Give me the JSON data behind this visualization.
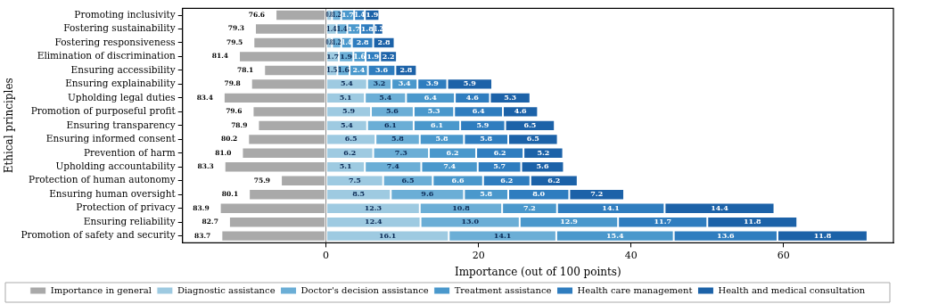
{
  "chart_data": {
    "type": "bar",
    "orientation": "horizontal",
    "stacked": true,
    "xlabel": "Importance (out of 100 points)",
    "ylabel": "Ethical principles",
    "categories": [
      "Promoting inclusivity",
      "Fostering sustainability",
      "Fostering responsiveness",
      "Elimination of discrimination",
      "Ensuring accessibility",
      "Ensuring explainability",
      "Upholding legal duties",
      "Promotion of purposeful profit",
      "Ensuring transparency",
      "Ensuring informed consent",
      "Prevention of harm",
      "Upholding accountability",
      "Protection of human autonomy",
      "Ensuring human oversight",
      "Protection of privacy",
      "Ensuring reliability",
      "Promotion of safety and security"
    ],
    "series": [
      {
        "name": "Importance in general",
        "color": "#a9a9a9",
        "values": [
          -6.6,
          -9.3,
          -9.5,
          -11.4,
          -8.1,
          -9.8,
          -13.4,
          -9.6,
          -8.9,
          -10.2,
          -11.0,
          -13.3,
          -5.9,
          -10.1,
          -13.9,
          -12.7,
          -13.7
        ]
      },
      {
        "name": "Diagnostic assistance",
        "color": "#9ecae1",
        "values": [
          0.8,
          1.4,
          0.8,
          1.7,
          1.5,
          5.4,
          5.1,
          5.9,
          5.4,
          6.5,
          6.2,
          5.1,
          7.5,
          8.5,
          12.3,
          12.4,
          16.1
        ],
        "value_labels": [
          "0.8",
          "1.4",
          "0.8",
          "1.7",
          "1.5",
          "5.4",
          "5.1",
          "5.9",
          "5.4",
          "6.5",
          "6.2",
          "5.1",
          "7.5",
          "8.5",
          "12.3",
          "12.4",
          "16.1"
        ]
      },
      {
        "name": "Doctor's decision assistance",
        "color": "#6baed6",
        "values": [
          1.2,
          1.4,
          1.2,
          1.9,
          1.6,
          3.2,
          5.4,
          5.6,
          6.1,
          5.8,
          7.3,
          7.4,
          6.5,
          9.6,
          10.8,
          13.0,
          14.1
        ],
        "value_labels": [
          "1.2",
          "1.4",
          "1.2",
          "1.9",
          "1.6",
          "3.2",
          "5.4",
          "5.6",
          "6.1",
          "5.8",
          "7.3",
          "7.4",
          "6.5",
          "9.6",
          "10.8",
          "13.0",
          "14.1"
        ]
      },
      {
        "name": "Treatment assistance",
        "color": "#4a98cc",
        "values": [
          1.7,
          1.7,
          1.4,
          1.6,
          2.4,
          3.4,
          6.4,
          5.3,
          6.1,
          5.8,
          6.2,
          7.4,
          6.6,
          5.8,
          7.2,
          12.9,
          15.4
        ],
        "value_labels": [
          "1.7",
          "1.7",
          "1.4",
          "1.6",
          "2.4",
          "3.4",
          "6.4",
          "5.3",
          "6.1",
          "5.8",
          "6.2",
          "7.4",
          "6.6",
          "5.8",
          "7.2",
          "12.9",
          "15.4"
        ]
      },
      {
        "name": "Health care management",
        "color": "#2f7dbf",
        "values": [
          1.4,
          1.8,
          2.8,
          1.9,
          3.6,
          3.9,
          4.6,
          6.4,
          5.9,
          5.8,
          6.2,
          5.7,
          6.2,
          8.0,
          14.1,
          11.7,
          13.6
        ],
        "value_labels": [
          "1.4",
          "1.8",
          "2.8",
          "1.9",
          "3.6",
          "3.9",
          "4.6",
          "6.4",
          "5.9",
          "5.8",
          "6.2",
          "5.7",
          "6.2",
          "8.0",
          "14.1",
          "11.7",
          "13.6"
        ]
      },
      {
        "name": "Health and medical consultation",
        "color": "#1c62a8",
        "values": [
          1.9,
          1.2,
          2.8,
          2.2,
          2.8,
          5.9,
          5.3,
          4.6,
          6.5,
          6.5,
          5.2,
          5.6,
          6.2,
          7.2,
          14.4,
          11.8,
          11.8
        ],
        "value_labels": [
          "1.9",
          "1.2",
          "2.8",
          "2.2",
          "2.8",
          "5.9",
          "5.3",
          "4.6",
          "6.5",
          "6.5",
          "5.2",
          "5.6",
          "6.2",
          "7.2",
          "14.4",
          "11.8",
          "11.8"
        ]
      }
    ],
    "xlim": [
      -18.8,
      74.4
    ],
    "xticks": [
      0,
      20,
      40,
      60
    ],
    "grid": false,
    "legend": "bottom",
    "ref_lines": [
      {
        "axis": "x",
        "value": 0,
        "color": "#888888"
      }
    ],
    "annotations": [
      {
        "text": "76.6",
        "x": -6.6,
        "y": "Promoting inclusivity"
      },
      {
        "text": "79.3",
        "x": -9.3,
        "y": "Fostering sustainability"
      },
      {
        "text": "79.5",
        "x": -9.5,
        "y": "Fostering responsiveness"
      },
      {
        "text": "81.4",
        "x": -11.4,
        "y": "Elimination of discrimination"
      },
      {
        "text": "78.1",
        "x": -8.1,
        "y": "Ensuring accessibility"
      },
      {
        "text": "79.8",
        "x": -9.8,
        "y": "Ensuring explainability"
      },
      {
        "text": "83.4",
        "x": -13.4,
        "y": "Upholding legal duties"
      },
      {
        "text": "79.6",
        "x": -9.6,
        "y": "Promotion of purposeful profit"
      },
      {
        "text": "78.9",
        "x": -8.9,
        "y": "Ensuring transparency"
      },
      {
        "text": "80.2",
        "x": -10.2,
        "y": "Ensuring informed consent"
      },
      {
        "text": "81.0",
        "x": -11.0,
        "y": "Prevention of harm"
      },
      {
        "text": "83.3",
        "x": -13.3,
        "y": "Upholding accountability"
      },
      {
        "text": "75.9",
        "x": -5.9,
        "y": "Protection of human autonomy"
      },
      {
        "text": "80.1",
        "x": -10.1,
        "y": "Ensuring human oversight"
      },
      {
        "text": "83.9",
        "x": -13.9,
        "y": "Protection of privacy"
      },
      {
        "text": "82.7",
        "x": -12.7,
        "y": "Ensuring reliability"
      },
      {
        "text": "83.7",
        "x": -13.7,
        "y": "Promotion of safety and security"
      }
    ]
  }
}
